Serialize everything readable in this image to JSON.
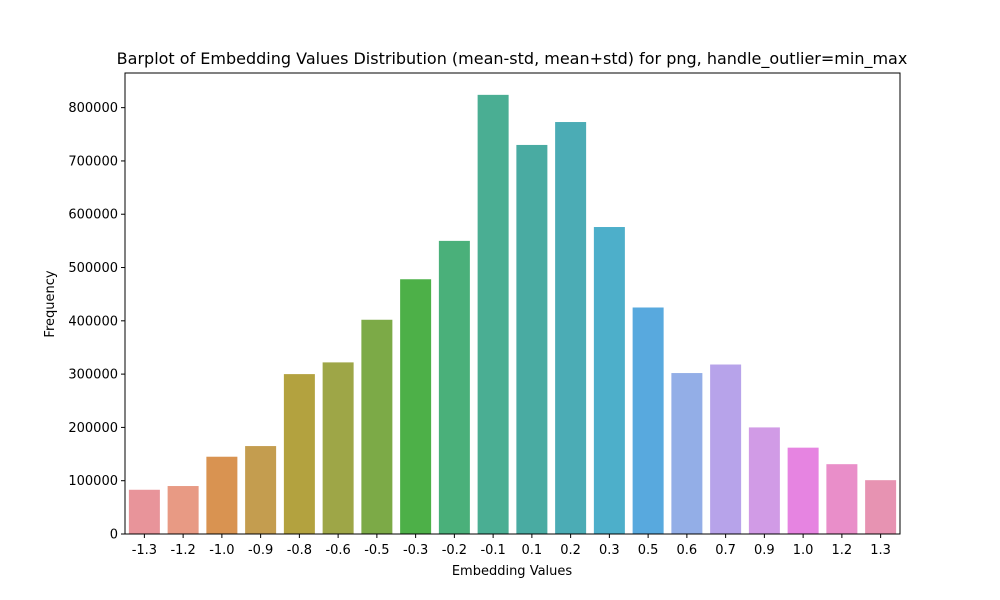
{
  "chart_data": {
    "type": "bar",
    "title": "Barplot of Embedding Values Distribution (mean-std, mean+std) for png, handle_outlier=min_max",
    "xlabel": "Embedding Values",
    "ylabel": "Frequency",
    "categories": [
      "-1.3",
      "-1.2",
      "-1.0",
      "-0.9",
      "-0.8",
      "-0.6",
      "-0.5",
      "-0.3",
      "-0.2",
      "-0.1",
      "0.1",
      "0.2",
      "0.3",
      "0.5",
      "0.6",
      "0.7",
      "0.9",
      "1.0",
      "1.2",
      "1.3"
    ],
    "values": [
      83000,
      90000,
      145000,
      165000,
      300000,
      322000,
      402000,
      478000,
      550000,
      824000,
      730000,
      773000,
      576000,
      425000,
      302000,
      318000,
      200000,
      162000,
      131000,
      101000
    ],
    "colors": [
      "#e8949a",
      "#e89a84",
      "#d99351",
      "#c49d4f",
      "#b3a23f",
      "#9ea647",
      "#7caa47",
      "#4db048",
      "#4ab07a",
      "#4aae93",
      "#49aba2",
      "#4bacb5",
      "#4dafca",
      "#58a9de",
      "#93aee7",
      "#b7a3ea",
      "#d19be6",
      "#e684e1",
      "#e98ec9",
      "#e793b2"
    ],
    "ylim": [
      0,
      865000
    ],
    "yticks": [
      0,
      100000,
      200000,
      300000,
      400000,
      500000,
      600000,
      700000,
      800000
    ],
    "ytick_labels": [
      "0",
      "100000",
      "200000",
      "300000",
      "400000",
      "500000",
      "600000",
      "700000",
      "800000"
    ],
    "grid": false,
    "legend": "none"
  }
}
